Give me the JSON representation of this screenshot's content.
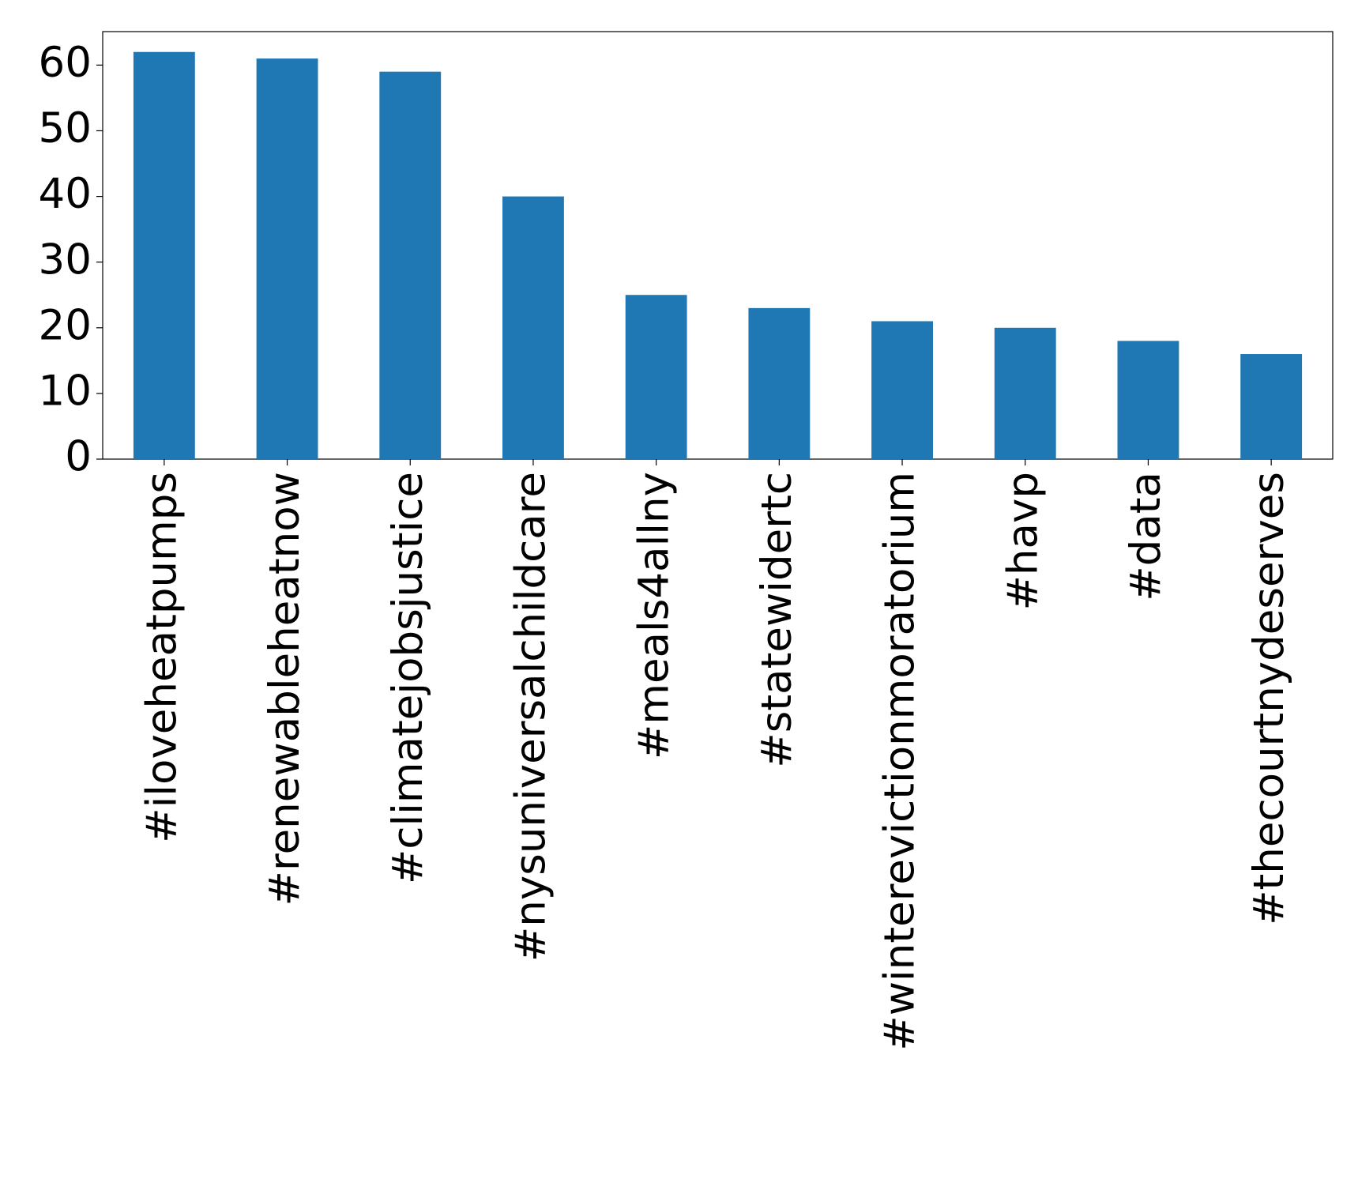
{
  "chart_data": {
    "type": "bar",
    "categories": [
      "#iloveheatpumps",
      "#renewableheatnow",
      "#climatejobsjustice",
      "#nysuniversalchildcare",
      "#meals4allny",
      "#statewidertc",
      "#winterevictionmoratorium",
      "#havp",
      "#data",
      "#thecourtnydeserves"
    ],
    "values": [
      62,
      61,
      59,
      40,
      25,
      23,
      21,
      20,
      18,
      16
    ],
    "color": "#1f77b4",
    "ylim": [
      0,
      65.1
    ],
    "yticks": [
      0,
      10,
      20,
      30,
      40,
      50,
      60
    ],
    "grid": false
  }
}
